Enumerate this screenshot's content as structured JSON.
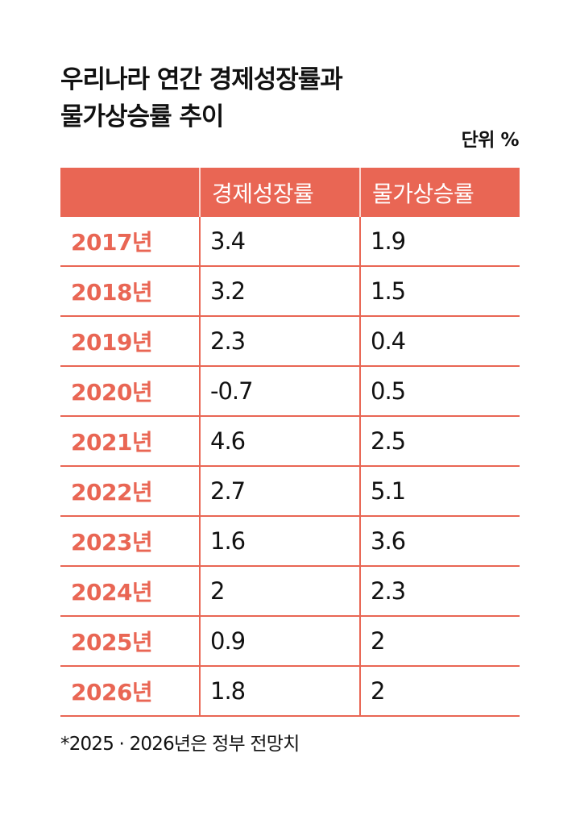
{
  "title": {
    "line1": "우리나라 연간 경제성장률과",
    "line2": "물가상승률 추이"
  },
  "unit_label": "단위 %",
  "table": {
    "headers": [
      "",
      "경제성장률",
      "물가상승률"
    ],
    "rows": [
      {
        "year": "2017년",
        "gdp": "3.4",
        "cpi": "1.9"
      },
      {
        "year": "2018년",
        "gdp": "3.2",
        "cpi": "1.5"
      },
      {
        "year": "2019년",
        "gdp": "2.3",
        "cpi": "0.4"
      },
      {
        "year": "2020년",
        "gdp": "-0.7",
        "cpi": "0.5"
      },
      {
        "year": "2021년",
        "gdp": "4.6",
        "cpi": "2.5"
      },
      {
        "year": "2022년",
        "gdp": "2.7",
        "cpi": "5.1"
      },
      {
        "year": "2023년",
        "gdp": "1.6",
        "cpi": "3.6"
      },
      {
        "year": "2024년",
        "gdp": "2",
        "cpi": "2.3"
      },
      {
        "year": "2025년",
        "gdp": "0.9",
        "cpi": "2"
      },
      {
        "year": "2026년",
        "gdp": "1.8",
        "cpi": "2"
      }
    ]
  },
  "footnote": "*2025 · 2026년은 정부 전망치",
  "colors": {
    "accent": "#E96654",
    "text": "#111111",
    "background": "#FFFFFF"
  },
  "chart_data": {
    "type": "table",
    "title": "우리나라 연간 경제성장률과 물가상승률 추이",
    "unit": "%",
    "categories": [
      "2017년",
      "2018년",
      "2019년",
      "2020년",
      "2021년",
      "2022년",
      "2023년",
      "2024년",
      "2025년",
      "2026년"
    ],
    "series": [
      {
        "name": "경제성장률",
        "values": [
          3.4,
          3.2,
          2.3,
          -0.7,
          4.6,
          2.7,
          1.6,
          2,
          0.9,
          1.8
        ]
      },
      {
        "name": "물가상승률",
        "values": [
          1.9,
          1.5,
          0.4,
          0.5,
          2.5,
          5.1,
          3.6,
          2.3,
          2,
          2
        ]
      }
    ],
    "annotations": [
      "*2025 · 2026년은 정부 전망치"
    ]
  }
}
